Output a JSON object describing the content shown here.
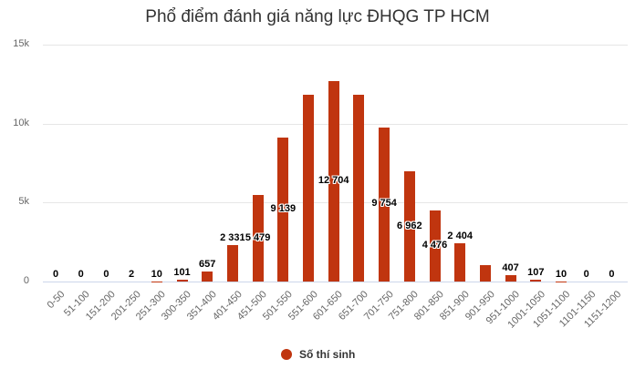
{
  "title": "Phổ điểm đánh giá năng lực ĐHQG TP HCM",
  "colors": {
    "bar": "#c0350f",
    "grid": "#e6e6e6",
    "axis_text": "#666666"
  },
  "y_axis": {
    "ticks": [
      "0",
      "5k",
      "10k",
      "15k"
    ],
    "max": 15000
  },
  "legend": {
    "label": "Số thí sinh"
  },
  "chart_data": {
    "type": "bar",
    "title": "Phổ điểm đánh giá năng lực ĐHQG TP HCM",
    "xlabel": "",
    "ylabel": "",
    "ylim": [
      0,
      15000
    ],
    "grid": true,
    "legend_position": "bottom",
    "categories": [
      "0-50",
      "51-100",
      "151-200",
      "201-250",
      "251-300",
      "300-350",
      "351-400",
      "401-450",
      "451-500",
      "501-550",
      "551-600",
      "601-650",
      "651-700",
      "701-750",
      "751-800",
      "801-850",
      "851-900",
      "901-950",
      "951-1000",
      "1001-1050",
      "1051-1100",
      "1101-1150",
      "1151-1200"
    ],
    "series": [
      {
        "name": "Số thí sinh",
        "values": [
          0,
          0,
          0,
          2,
          10,
          101,
          657,
          2331,
          5479,
          9139,
          11830,
          12704,
          11830,
          9754,
          6962,
          4476,
          2404,
          1040,
          407,
          107,
          10,
          0,
          0
        ],
        "labels": [
          "0",
          "0",
          "0",
          "2",
          "10",
          "101",
          "657",
          "2 331",
          "5 479",
          "9 139",
          "",
          "12 704",
          "",
          "9 754",
          "6 962",
          "4 476",
          "2 404",
          "",
          "407",
          "107",
          "10",
          "0",
          "0"
        ]
      }
    ]
  }
}
